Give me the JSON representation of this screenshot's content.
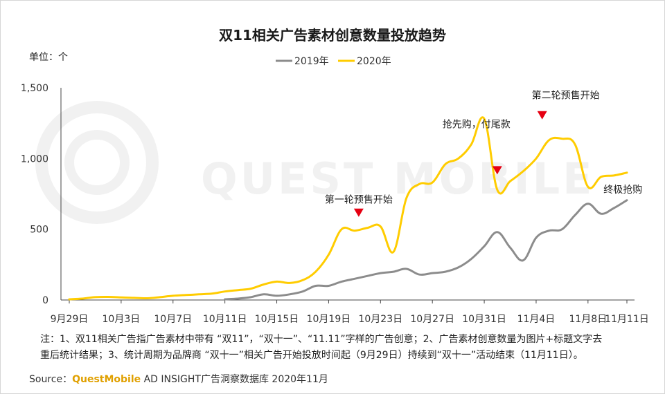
{
  "header": {
    "unit_label": "单位：个"
  },
  "watermark": {
    "text": "QUEST MOBILE"
  },
  "annotations": [
    {
      "label": "第一轮预售开始",
      "date": "10月21日",
      "arrow": true
    },
    {
      "label": "抢先购，付尾款",
      "date": "11月1日",
      "arrow": true
    },
    {
      "label": "第二轮预售开始",
      "date": "11月5日",
      "arrow": true
    },
    {
      "label": "终极抢购",
      "date": "11月10日",
      "arrow": false
    }
  ],
  "footer": {
    "note_line1": "注：1、双11相关广告指广告素材中带有 “双11”，“双十一”、“11.11”字样的广告创意；2、广告素材创意数量为图片+标题文字去",
    "note_line2": "重后统计结果；3、统计周期为品牌商 “双十一”相关广告开始投放时间起（9月29日）持续到“双十一”活动结束（11月11日）。",
    "source_prefix": "Source：",
    "source_brand": "QuestMobile",
    "source_rest": " AD INSIGHT广告洞察数据库 2020年11月"
  },
  "colors": {
    "series_2019": "#8c8c8c",
    "series_2020": "#ffcc00",
    "arrow": "#e60012"
  },
  "chart_data": {
    "type": "line",
    "title": "双11相关广告素材创意数量投放趋势",
    "xlabel": "",
    "ylabel": "",
    "ylim": [
      0,
      1500
    ],
    "yticks": [
      0,
      500,
      1000,
      1500
    ],
    "ytick_labels": [
      "0",
      "500",
      "1,000",
      "1,500"
    ],
    "x": [
      "9月29日",
      "9月30日",
      "10月1日",
      "10月2日",
      "10月3日",
      "10月4日",
      "10月5日",
      "10月6日",
      "10月7日",
      "10月8日",
      "10月9日",
      "10月10日",
      "10月11日",
      "10月12日",
      "10月13日",
      "10月14日",
      "10月15日",
      "10月16日",
      "10月17日",
      "10月18日",
      "10月19日",
      "10月20日",
      "10月21日",
      "10月22日",
      "10月23日",
      "10月24日",
      "10月25日",
      "10月26日",
      "10月27日",
      "10月28日",
      "10月29日",
      "10月30日",
      "10月31日",
      "11月1日",
      "11月2日",
      "11月3日",
      "11月4日",
      "11月5日",
      "11月6日",
      "11月7日",
      "11月8日",
      "11月9日",
      "11月10日",
      "11月11日"
    ],
    "xtick_labels": [
      "9月29日",
      "10月3日",
      "10月7日",
      "10月11日",
      "10月15日",
      "10月19日",
      "10月23日",
      "10月27日",
      "10月31日",
      "11月4日",
      "11月8日",
      "11月11日"
    ],
    "legend_position": "top-center",
    "grid": false,
    "series": [
      {
        "name": "2019年",
        "values": [
          null,
          null,
          null,
          null,
          null,
          null,
          null,
          null,
          null,
          null,
          null,
          null,
          5,
          10,
          20,
          40,
          30,
          40,
          60,
          100,
          100,
          130,
          150,
          170,
          190,
          200,
          220,
          180,
          190,
          200,
          230,
          290,
          380,
          480,
          370,
          280,
          440,
          490,
          500,
          600,
          680,
          610,
          650,
          705
        ]
      },
      {
        "name": "2020年",
        "values": [
          5,
          10,
          20,
          22,
          18,
          15,
          12,
          20,
          30,
          35,
          40,
          45,
          60,
          70,
          80,
          110,
          130,
          120,
          140,
          200,
          320,
          500,
          490,
          510,
          520,
          340,
          720,
          820,
          830,
          960,
          1000,
          1100,
          1280,
          780,
          840,
          910,
          1000,
          1130,
          1140,
          1100,
          800,
          870,
          880,
          900
        ]
      }
    ]
  }
}
